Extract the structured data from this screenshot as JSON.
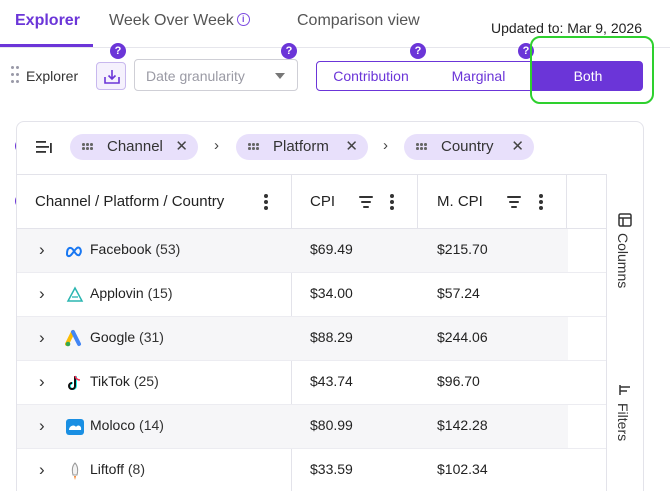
{
  "tabs": [
    {
      "label": "Explorer",
      "active": true
    },
    {
      "label": "Week Over Week",
      "active": false
    },
    {
      "label": "Comparison view",
      "active": false
    }
  ],
  "updated_text": "Updated to: Mar 9, 2026",
  "help_glyph": "?",
  "info_glyph": "i",
  "toolbar": {
    "explorer_label": "Explorer",
    "date_placeholder": "Date granularity",
    "view_modes": [
      "Contribution",
      "Marginal",
      "Both"
    ],
    "selected_mode": "Both"
  },
  "grouping": {
    "chips": [
      "Channel",
      "Platform",
      "Country"
    ],
    "remove_glyph": "✕",
    "separator_glyph": "›"
  },
  "table": {
    "headers": {
      "dimension": "Channel / Platform / Country",
      "cpi": "CPI",
      "mcpi": "M. CPI"
    },
    "rows": [
      {
        "name": "Facebook",
        "count": "(53)",
        "icon": "meta-icon",
        "cpi": "$69.49",
        "mcpi": "$215.70"
      },
      {
        "name": "Applovin",
        "count": "(15)",
        "icon": "applovin-icon",
        "cpi": "$34.00",
        "mcpi": "$57.24"
      },
      {
        "name": "Google",
        "count": "(31)",
        "icon": "google-ads-icon",
        "cpi": "$88.29",
        "mcpi": "$244.06"
      },
      {
        "name": "TikTok",
        "count": "(25)",
        "icon": "tiktok-icon",
        "cpi": "$43.74",
        "mcpi": "$96.70"
      },
      {
        "name": "Moloco",
        "count": "(14)",
        "icon": "moloco-icon",
        "cpi": "$80.99",
        "mcpi": "$142.28"
      },
      {
        "name": "Liftoff",
        "count": "(8)",
        "icon": "liftoff-icon",
        "cpi": "$33.59",
        "mcpi": "$102.34"
      }
    ],
    "expand_glyph": "›"
  },
  "side_panel": {
    "columns_label": "Columns",
    "filters_label": "Filters"
  },
  "colors": {
    "accent": "#6b35d8",
    "highlight": "#2ed02e",
    "chip_bg": "#e8e0fb"
  }
}
